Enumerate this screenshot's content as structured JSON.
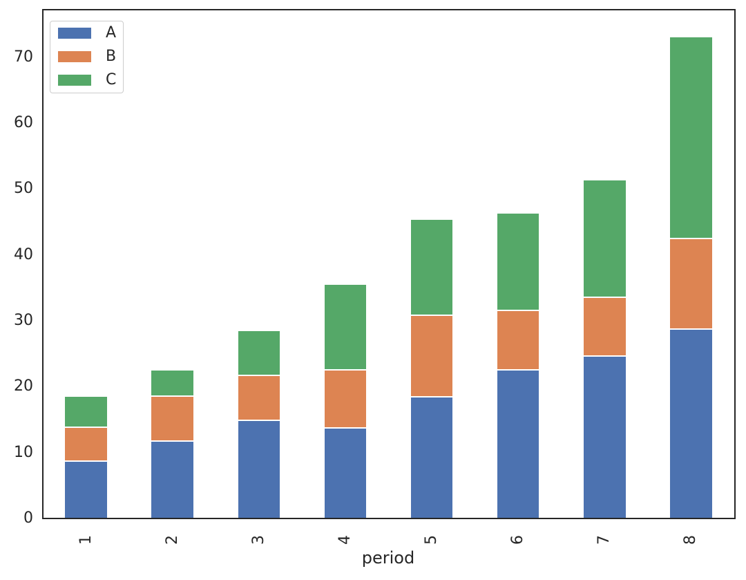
{
  "chart_data": {
    "type": "bar",
    "stacked": true,
    "title": "",
    "xlabel": "period",
    "ylabel": "",
    "categories": [
      "1",
      "2",
      "3",
      "4",
      "5",
      "6",
      "7",
      "8"
    ],
    "series": [
      {
        "name": "A",
        "color": "#4C72B0",
        "values": [
          8.7,
          11.8,
          14.9,
          13.7,
          18.5,
          22.6,
          24.7,
          28.7
        ]
      },
      {
        "name": "B",
        "color": "#DD8452",
        "values": [
          5.1,
          6.8,
          6.8,
          8.9,
          12.3,
          9.0,
          8.9,
          13.8
        ]
      },
      {
        "name": "C",
        "color": "#55A868",
        "values": [
          4.8,
          4.0,
          6.8,
          13.0,
          14.6,
          14.8,
          17.8,
          30.6
        ]
      }
    ],
    "ylim": [
      0,
      77.2
    ],
    "yticks": [
      "0",
      "10",
      "20",
      "30",
      "40",
      "50",
      "60",
      "70"
    ],
    "xtick_rotation": 90,
    "bar_width_fraction": 0.5,
    "grid": false,
    "legend_position": "upper left",
    "legend_entries": [
      {
        "label": "A",
        "color": "#4C72B0"
      },
      {
        "label": "B",
        "color": "#DD8452"
      },
      {
        "label": "C",
        "color": "#55A868"
      }
    ]
  },
  "colors": {
    "background": "#ffffff",
    "spine": "#262626",
    "tick_label": "#262626",
    "legend_border": "#cccccc",
    "bar_edge": "#ffffff"
  }
}
